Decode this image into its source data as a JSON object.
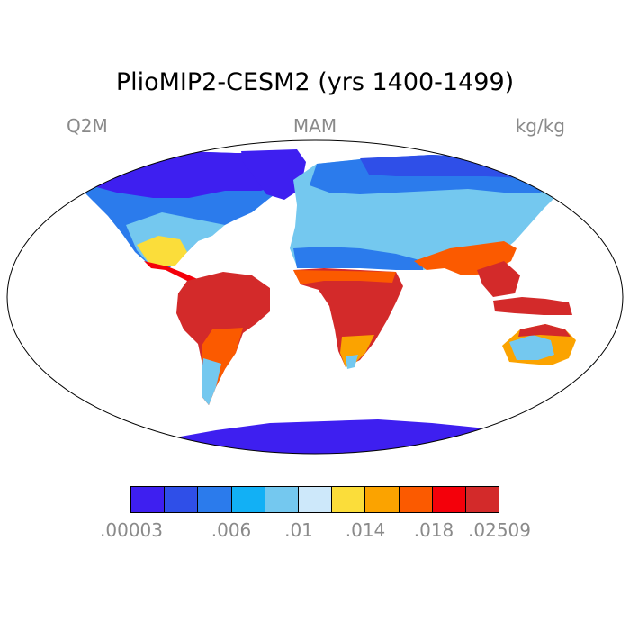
{
  "title": "PlioMIP2-CESM2 (yrs 1400-1499)",
  "header": {
    "variable": "Q2M",
    "season": "MAM",
    "units": "kg/kg"
  },
  "colorbar": {
    "colors": [
      "#3e1ff0",
      "#2f4fe8",
      "#2b7bec",
      "#12b0f5",
      "#74c8ef",
      "#cde8fa",
      "#fbdd3a",
      "#fba300",
      "#fb5a00",
      "#f4000a",
      "#d32a2a"
    ],
    "tick_labels": [
      ".00003",
      ".006",
      ".01",
      ".014",
      ".018",
      ".02509"
    ]
  },
  "map": {
    "projection": "robinson",
    "ocean_color": "#ffffff"
  }
}
